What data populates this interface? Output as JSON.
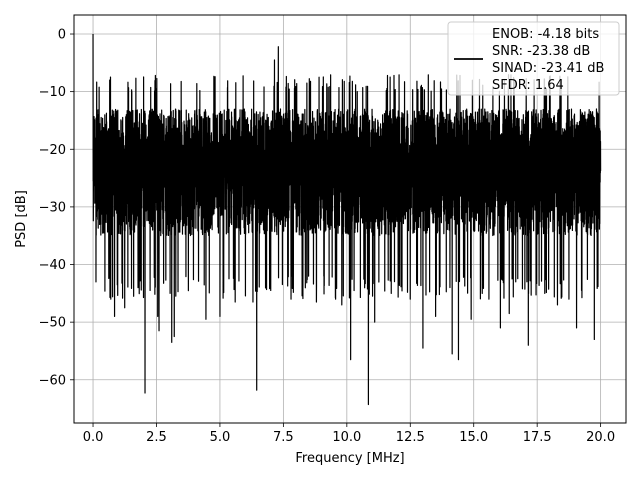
{
  "chart_data": {
    "type": "line",
    "xlabel": "Frequency [MHz]",
    "ylabel": "PSD [dB]",
    "xlim": [
      -0.75,
      21.0
    ],
    "ylim": [
      -67.5,
      3.3
    ],
    "xticks": [
      0.0,
      2.5,
      5.0,
      7.5,
      10.0,
      12.5,
      15.0,
      17.5,
      20.0
    ],
    "xtick_labels": [
      "0.0",
      "2.5",
      "5.0",
      "7.5",
      "10.0",
      "12.5",
      "15.0",
      "17.5",
      "20.0"
    ],
    "yticks": [
      0,
      -10,
      -20,
      -30,
      -40,
      -50,
      -60
    ],
    "ytick_labels": [
      "0",
      "−10",
      "−20",
      "−30",
      "−40",
      "−50",
      "−60"
    ],
    "grid": true,
    "legend": {
      "placement": "top-right",
      "lines": [
        "ENOB: -4.18 bits",
        "SNR: -23.38 dB",
        "SINAD: -23.41 dB",
        "SFDR: 1.64"
      ]
    },
    "series": [
      {
        "color": "#000000",
        "x_range": [
          0,
          20
        ],
        "noise_band": {
          "upper_typical": -13,
          "lower_typical": -40,
          "median": -23
        },
        "peaks": [
          {
            "x": 0.0,
            "y": 0.0
          },
          {
            "x": 7.3,
            "y": -2.2
          },
          {
            "x": 7.15,
            "y": -4.5
          }
        ],
        "dips": [
          {
            "x": 0.7,
            "y": -46.0
          },
          {
            "x": 0.85,
            "y": -49.0
          },
          {
            "x": 1.25,
            "y": -47.5
          },
          {
            "x": 1.6,
            "y": -45.5
          },
          {
            "x": 2.05,
            "y": -62.3
          },
          {
            "x": 2.25,
            "y": -44.5
          },
          {
            "x": 2.55,
            "y": -49.0
          },
          {
            "x": 2.6,
            "y": -51.5
          },
          {
            "x": 3.1,
            "y": -53.5
          },
          {
            "x": 3.2,
            "y": -52.5
          },
          {
            "x": 4.45,
            "y": -49.5
          },
          {
            "x": 5.0,
            "y": -49.0
          },
          {
            "x": 5.6,
            "y": -46.5
          },
          {
            "x": 6.3,
            "y": -46.5
          },
          {
            "x": 6.45,
            "y": -61.8
          },
          {
            "x": 7.0,
            "y": -44.5
          },
          {
            "x": 7.8,
            "y": -46.0
          },
          {
            "x": 8.8,
            "y": -46.5
          },
          {
            "x": 9.8,
            "y": -47.0
          },
          {
            "x": 10.15,
            "y": -56.5
          },
          {
            "x": 10.85,
            "y": -64.3
          },
          {
            "x": 11.1,
            "y": -50.0
          },
          {
            "x": 11.75,
            "y": -45.0
          },
          {
            "x": 12.5,
            "y": -46.0
          },
          {
            "x": 13.0,
            "y": -54.5
          },
          {
            "x": 13.5,
            "y": -49.0
          },
          {
            "x": 14.15,
            "y": -55.5
          },
          {
            "x": 14.4,
            "y": -56.5
          },
          {
            "x": 14.9,
            "y": -49.5
          },
          {
            "x": 15.6,
            "y": -46.0
          },
          {
            "x": 16.05,
            "y": -51.0
          },
          {
            "x": 16.4,
            "y": -48.5
          },
          {
            "x": 17.15,
            "y": -54.0
          },
          {
            "x": 17.8,
            "y": -45.0
          },
          {
            "x": 18.3,
            "y": -47.0
          },
          {
            "x": 18.75,
            "y": -46.0
          },
          {
            "x": 19.05,
            "y": -51.0
          },
          {
            "x": 19.75,
            "y": -53.0
          }
        ]
      }
    ]
  }
}
